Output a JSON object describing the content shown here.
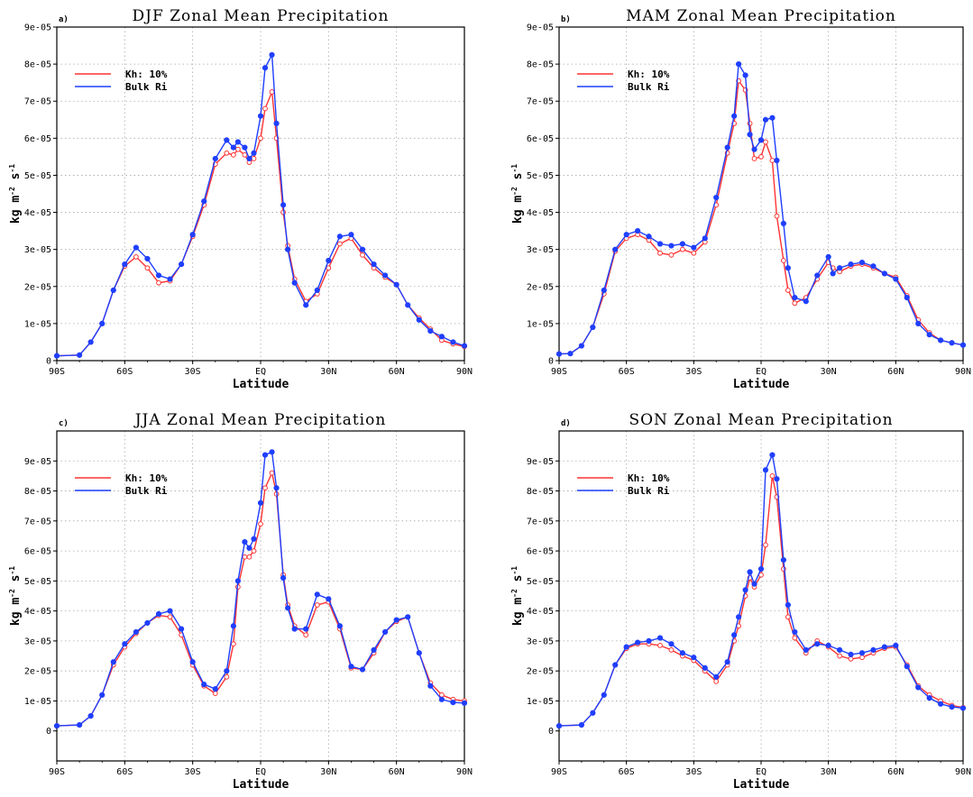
{
  "figure": {
    "xlabel": "Latitude",
    "ylabel_parts": [
      "kg m",
      "-2",
      " s",
      "-1"
    ],
    "grid": true,
    "legend": "upper-left"
  },
  "colors": {
    "series_kh": "#ff3333",
    "series_bulk": "#1f3fff"
  },
  "chart_data": [
    {
      "type": "line",
      "panel_letter": "a)",
      "title": "DJF Zonal Mean Precipitation",
      "xlabel": "Latitude",
      "ylabel": "kg m-2 s-1",
      "xlim": [
        -90,
        90
      ],
      "ylim": [
        0,
        9e-05
      ],
      "xticks": [
        -90,
        -60,
        -30,
        0,
        30,
        60,
        90
      ],
      "xtick_labels": [
        "90S",
        "60S",
        "30S",
        "EQ",
        "30N",
        "60N",
        "90N"
      ],
      "yticks": [
        0,
        1e-05,
        2e-05,
        3e-05,
        4e-05,
        5e-05,
        6e-05,
        7e-05,
        8e-05,
        9e-05
      ],
      "ytick_labels": [
        "0",
        "1e-05",
        "2e-05",
        "3e-05",
        "4e-05",
        "5e-05",
        "6e-05",
        "7e-05",
        "8e-05",
        "9e-05"
      ],
      "series": [
        {
          "name": "Kh: 10%",
          "color": "#ff3333",
          "marker": "open-circle",
          "x": [
            -90,
            -80,
            -75,
            -70,
            -65,
            -60,
            -55,
            -50,
            -45,
            -40,
            -35,
            -30,
            -25,
            -20,
            -15,
            -12,
            -10,
            -7,
            -5,
            -3,
            0,
            2,
            5,
            7,
            10,
            12,
            15,
            20,
            25,
            30,
            35,
            40,
            45,
            50,
            55,
            60,
            65,
            70,
            75,
            80,
            85,
            90
          ],
          "y": [
            1.3e-06,
            1.5e-06,
            5e-06,
            1e-05,
            1.9e-05,
            2.55e-05,
            2.8e-05,
            2.5e-05,
            2.1e-05,
            2.15e-05,
            2.6e-05,
            3.35e-05,
            4.2e-05,
            5.3e-05,
            5.6e-05,
            5.55e-05,
            5.7e-05,
            5.55e-05,
            5.35e-05,
            5.45e-05,
            6e-05,
            6.8e-05,
            7.25e-05,
            6e-05,
            4e-05,
            3.1e-05,
            2.2e-05,
            1.6e-05,
            1.8e-05,
            2.5e-05,
            3.15e-05,
            3.3e-05,
            2.85e-05,
            2.5e-05,
            2.25e-05,
            2.05e-05,
            1.5e-05,
            1.15e-05,
            8.5e-06,
            5.5e-06,
            4.5e-06,
            3.8e-06
          ]
        },
        {
          "name": "Bulk Ri",
          "color": "#1f3fff",
          "marker": "filled-circle",
          "x": [
            -90,
            -80,
            -75,
            -70,
            -65,
            -60,
            -55,
            -50,
            -45,
            -40,
            -35,
            -30,
            -25,
            -20,
            -15,
            -12,
            -10,
            -7,
            -5,
            -3,
            0,
            2,
            5,
            7,
            10,
            12,
            15,
            20,
            25,
            30,
            35,
            40,
            45,
            50,
            55,
            60,
            65,
            70,
            75,
            80,
            85,
            90
          ],
          "y": [
            1.3e-06,
            1.5e-06,
            5e-06,
            1e-05,
            1.9e-05,
            2.6e-05,
            3.05e-05,
            2.75e-05,
            2.3e-05,
            2.2e-05,
            2.6e-05,
            3.4e-05,
            4.3e-05,
            5.45e-05,
            5.95e-05,
            5.75e-05,
            5.9e-05,
            5.75e-05,
            5.45e-05,
            5.6e-05,
            6.6e-05,
            7.9e-05,
            8.25e-05,
            6.4e-05,
            4.2e-05,
            3e-05,
            2.1e-05,
            1.5e-05,
            1.9e-05,
            2.7e-05,
            3.35e-05,
            3.4e-05,
            3e-05,
            2.6e-05,
            2.3e-05,
            2.05e-05,
            1.5e-05,
            1.1e-05,
            8e-06,
            6.5e-06,
            5e-06,
            4e-06
          ]
        }
      ]
    },
    {
      "type": "line",
      "panel_letter": "b)",
      "title": "MAM Zonal Mean Precipitation",
      "xlabel": "Latitude",
      "ylabel": "kg m-2 s-1",
      "xlim": [
        -90,
        90
      ],
      "ylim": [
        0,
        9e-05
      ],
      "xticks": [
        -90,
        -60,
        -30,
        0,
        30,
        60,
        90
      ],
      "xtick_labels": [
        "90S",
        "60S",
        "30S",
        "EQ",
        "30N",
        "60N",
        "90N"
      ],
      "yticks": [
        0,
        1e-05,
        2e-05,
        3e-05,
        4e-05,
        5e-05,
        6e-05,
        7e-05,
        8e-05,
        9e-05
      ],
      "ytick_labels": [
        "0",
        "1e-05",
        "2e-05",
        "3e-05",
        "4e-05",
        "5e-05",
        "6e-05",
        "7e-05",
        "8e-05",
        "9e-05"
      ],
      "series": [
        {
          "name": "Kh: 10%",
          "color": "#ff3333",
          "marker": "open-circle",
          "x": [
            -90,
            -85,
            -80,
            -75,
            -70,
            -65,
            -60,
            -55,
            -50,
            -45,
            -40,
            -35,
            -30,
            -25,
            -20,
            -15,
            -12,
            -10,
            -7,
            -5,
            -3,
            0,
            2,
            5,
            7,
            10,
            12,
            15,
            20,
            25,
            30,
            32,
            35,
            40,
            45,
            50,
            55,
            60,
            65,
            70,
            75,
            80,
            85,
            90
          ],
          "y": [
            1.8e-06,
            1.9e-06,
            4e-06,
            9e-06,
            1.8e-05,
            2.95e-05,
            3.3e-05,
            3.4e-05,
            3.25e-05,
            2.9e-05,
            2.85e-05,
            3e-05,
            2.9e-05,
            3.2e-05,
            4.2e-05,
            5.6e-05,
            6.4e-05,
            7.55e-05,
            7.3e-05,
            6.4e-05,
            5.45e-05,
            5.5e-05,
            5.9e-05,
            5.4e-05,
            3.9e-05,
            2.7e-05,
            1.9e-05,
            1.55e-05,
            1.7e-05,
            2.2e-05,
            2.65e-05,
            2.5e-05,
            2.4e-05,
            2.55e-05,
            2.6e-05,
            2.5e-05,
            2.35e-05,
            2.25e-05,
            1.75e-05,
            1.1e-05,
            7.5e-06,
            5.5e-06,
            4.8e-06,
            4.2e-06
          ]
        },
        {
          "name": "Bulk Ri",
          "color": "#1f3fff",
          "marker": "filled-circle",
          "x": [
            -90,
            -85,
            -80,
            -75,
            -70,
            -65,
            -60,
            -55,
            -50,
            -45,
            -40,
            -35,
            -30,
            -25,
            -20,
            -15,
            -12,
            -10,
            -7,
            -5,
            -3,
            0,
            2,
            5,
            7,
            10,
            12,
            15,
            20,
            25,
            30,
            32,
            35,
            40,
            45,
            50,
            55,
            60,
            65,
            70,
            75,
            80,
            85,
            90
          ],
          "y": [
            1.8e-06,
            1.9e-06,
            4e-06,
            9e-06,
            1.9e-05,
            3e-05,
            3.4e-05,
            3.5e-05,
            3.35e-05,
            3.15e-05,
            3.1e-05,
            3.15e-05,
            3.05e-05,
            3.3e-05,
            4.4e-05,
            5.75e-05,
            6.6e-05,
            8e-05,
            7.7e-05,
            6.1e-05,
            5.7e-05,
            5.95e-05,
            6.5e-05,
            6.55e-05,
            5.4e-05,
            3.7e-05,
            2.5e-05,
            1.7e-05,
            1.6e-05,
            2.3e-05,
            2.8e-05,
            2.35e-05,
            2.5e-05,
            2.6e-05,
            2.65e-05,
            2.55e-05,
            2.35e-05,
            2.2e-05,
            1.7e-05,
            1e-05,
            7e-06,
            5.5e-06,
            4.8e-06,
            4.2e-06
          ]
        }
      ]
    },
    {
      "type": "line",
      "panel_letter": "c)",
      "title": "JJA Zonal Mean Precipitation",
      "xlabel": "Latitude",
      "ylabel": "kg m-2 s-1",
      "xlim": [
        -90,
        90
      ],
      "ylim": [
        -1e-05,
        0.0001
      ],
      "xticks": [
        -90,
        -60,
        -30,
        0,
        30,
        60,
        90
      ],
      "xtick_labels": [
        "90S",
        "60S",
        "30S",
        "EQ",
        "30N",
        "60N",
        "90N"
      ],
      "yticks": [
        0,
        1e-05,
        2e-05,
        3e-05,
        4e-05,
        5e-05,
        6e-05,
        7e-05,
        8e-05,
        9e-05
      ],
      "ytick_labels": [
        "0",
        "1e-05",
        "2e-05",
        "3e-05",
        "4e-05",
        "5e-05",
        "6e-05",
        "7e-05",
        "8e-05",
        "9e-05"
      ],
      "series": [
        {
          "name": "Kh: 10%",
          "color": "#ff3333",
          "marker": "open-circle",
          "x": [
            -90,
            -80,
            -75,
            -70,
            -65,
            -60,
            -55,
            -50,
            -45,
            -40,
            -35,
            -30,
            -25,
            -20,
            -15,
            -12,
            -10,
            -7,
            -5,
            -3,
            0,
            2,
            5,
            7,
            10,
            12,
            15,
            20,
            25,
            30,
            35,
            40,
            45,
            50,
            55,
            60,
            65,
            70,
            75,
            80,
            85,
            90
          ],
          "y": [
            1.7e-06,
            2e-06,
            5e-06,
            1.2e-05,
            2.2e-05,
            2.8e-05,
            3.25e-05,
            3.6e-05,
            3.85e-05,
            3.8e-05,
            3.2e-05,
            2.2e-05,
            1.5e-05,
            1.25e-05,
            1.8e-05,
            2.9e-05,
            4.8e-05,
            5.8e-05,
            5.8e-05,
            6e-05,
            6.9e-05,
            8.1e-05,
            8.6e-05,
            7.9e-05,
            5.2e-05,
            4.2e-05,
            3.5e-05,
            3.2e-05,
            4.2e-05,
            4.3e-05,
            3.4e-05,
            2.1e-05,
            2.05e-05,
            2.6e-05,
            3.3e-05,
            3.65e-05,
            3.8e-05,
            2.6e-05,
            1.6e-05,
            1.2e-05,
            1.05e-05,
            1e-05
          ]
        },
        {
          "name": "Bulk Ri",
          "color": "#1f3fff",
          "marker": "filled-circle",
          "x": [
            -90,
            -80,
            -75,
            -70,
            -65,
            -60,
            -55,
            -50,
            -45,
            -40,
            -35,
            -30,
            -25,
            -20,
            -15,
            -12,
            -10,
            -7,
            -5,
            -3,
            0,
            2,
            5,
            7,
            10,
            12,
            15,
            20,
            25,
            30,
            35,
            40,
            45,
            50,
            55,
            60,
            65,
            70,
            75,
            80,
            85,
            90
          ],
          "y": [
            1.7e-06,
            2e-06,
            5e-06,
            1.2e-05,
            2.3e-05,
            2.9e-05,
            3.3e-05,
            3.6e-05,
            3.9e-05,
            4e-05,
            3.4e-05,
            2.3e-05,
            1.55e-05,
            1.4e-05,
            2e-05,
            3.5e-05,
            5e-05,
            6.3e-05,
            6.1e-05,
            6.4e-05,
            7.6e-05,
            9.2e-05,
            9.3e-05,
            8.1e-05,
            5.1e-05,
            4.1e-05,
            3.4e-05,
            3.4e-05,
            4.55e-05,
            4.4e-05,
            3.5e-05,
            2.15e-05,
            2.05e-05,
            2.7e-05,
            3.3e-05,
            3.7e-05,
            3.8e-05,
            2.6e-05,
            1.5e-05,
            1.05e-05,
            9.5e-06,
            9.3e-06
          ]
        }
      ]
    },
    {
      "type": "line",
      "panel_letter": "d)",
      "title": "SON Zonal Mean Precipitation",
      "xlabel": "Latitude",
      "ylabel": "kg m-2 s-1",
      "xlim": [
        -90,
        90
      ],
      "ylim": [
        -1e-05,
        0.0001
      ],
      "xticks": [
        -90,
        -60,
        -30,
        0,
        30,
        60,
        90
      ],
      "xtick_labels": [
        "90S",
        "60S",
        "30S",
        "EQ",
        "30N",
        "60N",
        "90N"
      ],
      "yticks": [
        0,
        1e-05,
        2e-05,
        3e-05,
        4e-05,
        5e-05,
        6e-05,
        7e-05,
        8e-05,
        9e-05
      ],
      "ytick_labels": [
        "0",
        "1e-05",
        "2e-05",
        "3e-05",
        "4e-05",
        "5e-05",
        "6e-05",
        "7e-05",
        "8e-05",
        "9e-05"
      ],
      "series": [
        {
          "name": "Kh: 10%",
          "color": "#ff3333",
          "marker": "open-circle",
          "x": [
            -90,
            -80,
            -75,
            -70,
            -65,
            -60,
            -55,
            -50,
            -45,
            -40,
            -35,
            -30,
            -25,
            -20,
            -15,
            -12,
            -10,
            -7,
            -5,
            -3,
            0,
            2,
            5,
            7,
            10,
            12,
            15,
            20,
            25,
            30,
            35,
            40,
            45,
            50,
            55,
            60,
            65,
            70,
            75,
            80,
            85,
            90
          ],
          "y": [
            1.7e-06,
            2e-06,
            6e-06,
            1.2e-05,
            2.2e-05,
            2.75e-05,
            2.9e-05,
            2.9e-05,
            2.85e-05,
            2.7e-05,
            2.5e-05,
            2.35e-05,
            2e-05,
            1.65e-05,
            2.2e-05,
            3e-05,
            3.5e-05,
            4.5e-05,
            5.1e-05,
            4.8e-05,
            5.2e-05,
            6.2e-05,
            8.5e-05,
            7.8e-05,
            5.4e-05,
            3.8e-05,
            3.1e-05,
            2.6e-05,
            3e-05,
            2.8e-05,
            2.5e-05,
            2.4e-05,
            2.45e-05,
            2.6e-05,
            2.75e-05,
            2.8e-05,
            2.2e-05,
            1.5e-05,
            1.2e-05,
            1e-05,
            8.5e-06,
            7.8e-06
          ]
        },
        {
          "name": "Bulk Ri",
          "color": "#1f3fff",
          "marker": "filled-circle",
          "x": [
            -90,
            -80,
            -75,
            -70,
            -65,
            -60,
            -55,
            -50,
            -45,
            -40,
            -35,
            -30,
            -25,
            -20,
            -15,
            -12,
            -10,
            -7,
            -5,
            -3,
            0,
            2,
            5,
            7,
            10,
            12,
            15,
            20,
            25,
            30,
            35,
            40,
            45,
            50,
            55,
            60,
            65,
            70,
            75,
            80,
            85,
            90
          ],
          "y": [
            1.7e-06,
            2e-06,
            6e-06,
            1.2e-05,
            2.2e-05,
            2.8e-05,
            2.95e-05,
            3e-05,
            3.1e-05,
            2.9e-05,
            2.6e-05,
            2.45e-05,
            2.1e-05,
            1.8e-05,
            2.3e-05,
            3.2e-05,
            3.8e-05,
            4.7e-05,
            5.3e-05,
            4.9e-05,
            5.4e-05,
            8.7e-05,
            9.2e-05,
            8.4e-05,
            5.7e-05,
            4.2e-05,
            3.3e-05,
            2.7e-05,
            2.9e-05,
            2.85e-05,
            2.7e-05,
            2.55e-05,
            2.6e-05,
            2.7e-05,
            2.8e-05,
            2.85e-05,
            2.15e-05,
            1.45e-05,
            1.1e-05,
            9e-06,
            8e-06,
            7.6e-06
          ]
        }
      ]
    }
  ]
}
